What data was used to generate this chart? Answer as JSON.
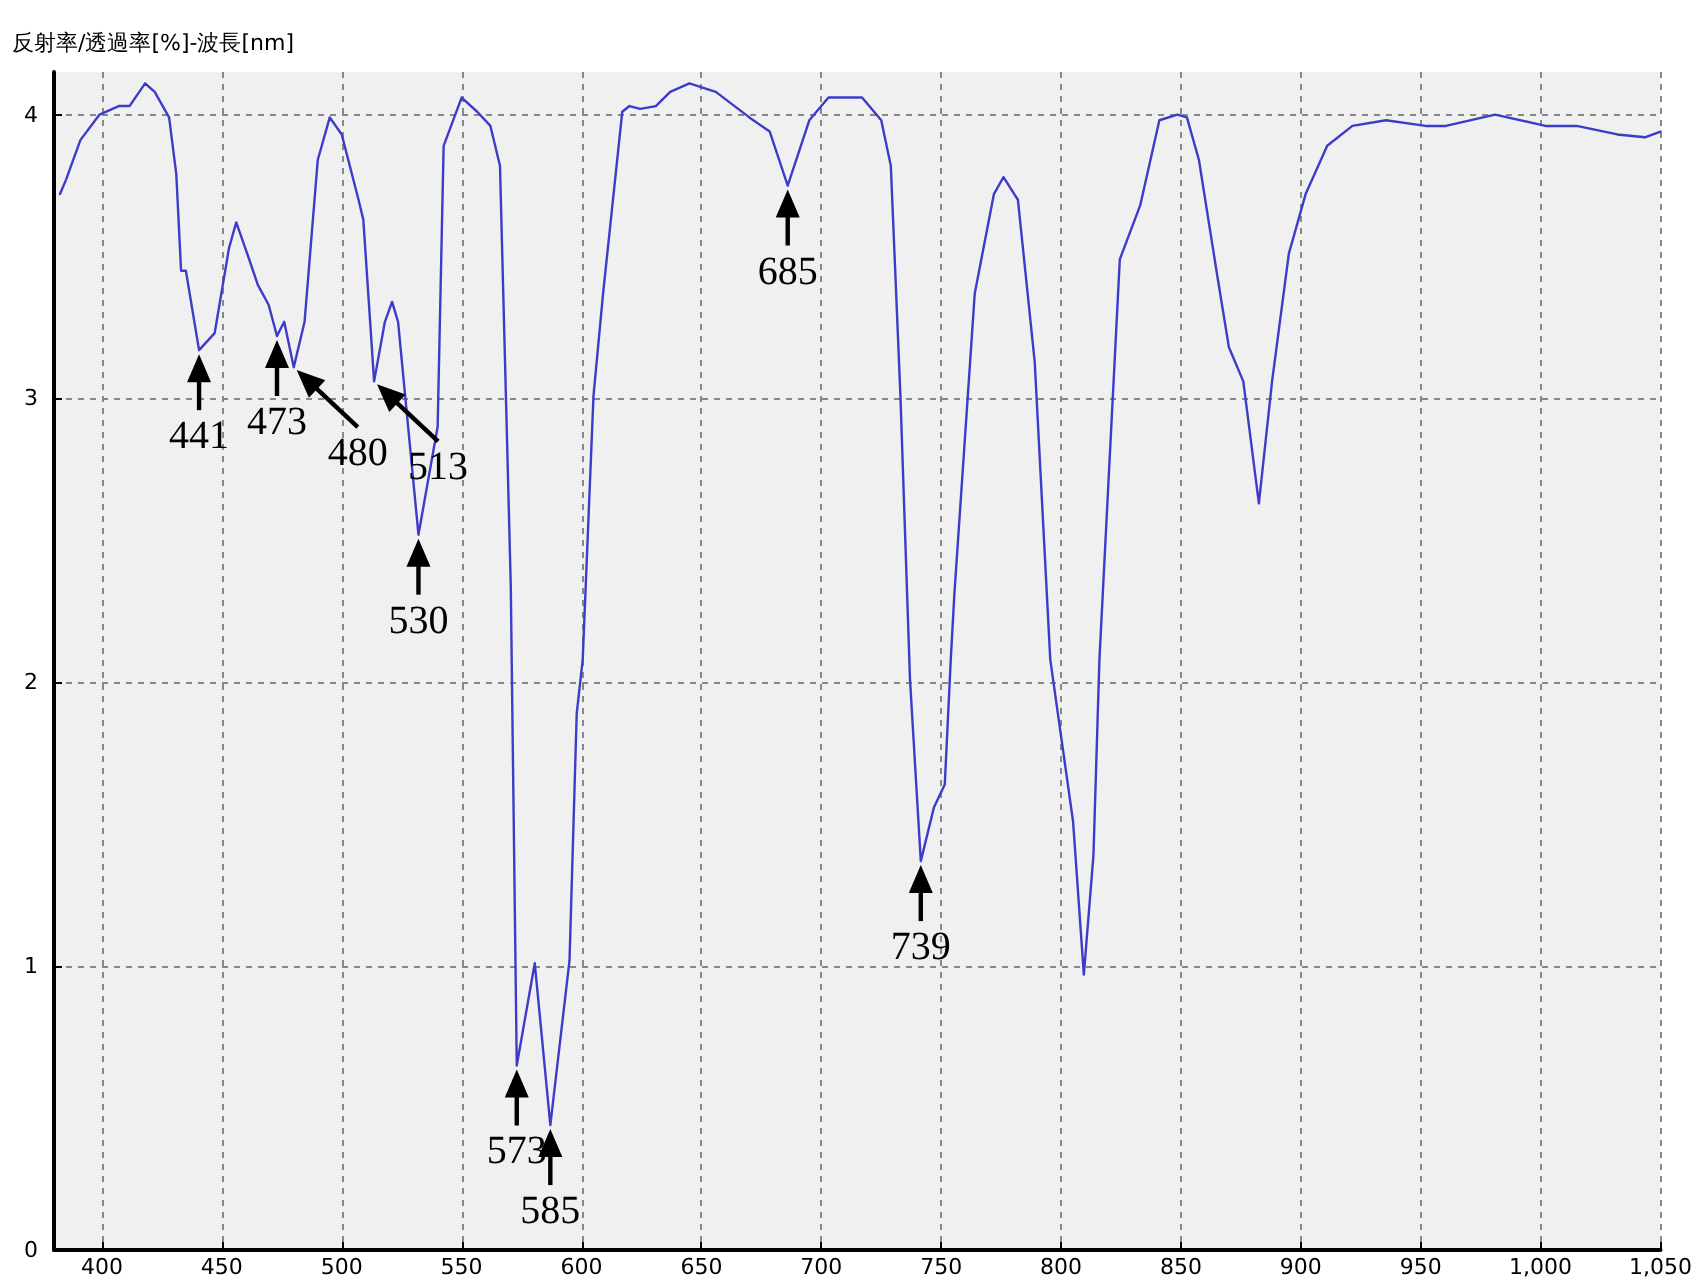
{
  "chart_data": {
    "type": "line",
    "title": "反射率/透過率[%]-波長[nm]",
    "x": [
      382.5,
      385,
      391,
      399,
      407,
      411.5,
      418,
      422,
      428,
      431,
      433,
      435,
      440.5,
      447,
      453,
      456,
      461,
      465,
      469.5,
      473,
      476,
      480,
      484.5,
      490,
      495,
      500,
      507,
      509,
      513.5,
      518,
      521,
      523.5,
      532,
      540,
      542.5,
      550,
      556.5,
      562,
      566,
      570.5,
      573,
      580.5,
      587,
      595,
      598,
      600.5,
      605,
      609,
      617,
      620,
      624.5,
      631,
      637,
      645,
      656,
      670,
      678.5,
      686,
      695,
      703,
      717,
      725,
      729,
      733,
      737,
      741.5,
      747,
      751.5,
      754,
      755.5,
      764,
      772,
      776,
      782,
      789,
      795.5,
      805,
      809.5,
      813.5,
      816,
      824.5,
      833,
      841,
      848.5,
      852.5,
      857.5,
      865,
      870,
      876,
      882.5,
      888,
      895,
      902,
      911,
      921.5,
      935.5,
      952,
      960.5,
      981,
      1002,
      1015,
      1032,
      1043.5,
      1050
    ],
    "series": [
      {
        "color": "#3c3cc8",
        "values": [
          3.72,
          3.77,
          3.91,
          4.0,
          4.03,
          4.03,
          4.11,
          4.08,
          3.99,
          3.79,
          3.45,
          3.45,
          3.17,
          3.23,
          3.53,
          3.62,
          3.5,
          3.4,
          3.33,
          3.22,
          3.27,
          3.11,
          3.27,
          3.84,
          3.99,
          3.93,
          3.7,
          3.63,
          3.06,
          3.27,
          3.34,
          3.27,
          2.52,
          2.9,
          3.89,
          4.06,
          4.01,
          3.96,
          3.82,
          2.34,
          0.65,
          1.01,
          0.44,
          1.02,
          1.89,
          2.08,
          3.01,
          3.37,
          4.01,
          4.03,
          4.02,
          4.03,
          4.08,
          4.11,
          4.08,
          3.99,
          3.94,
          3.75,
          3.98,
          4.06,
          4.06,
          3.98,
          3.82,
          3.01,
          2.01,
          1.37,
          1.56,
          1.64,
          2.08,
          2.31,
          3.37,
          3.72,
          3.78,
          3.7,
          3.13,
          2.08,
          1.51,
          0.97,
          1.39,
          2.08,
          3.49,
          3.68,
          3.98,
          4.0,
          3.99,
          3.84,
          3.44,
          3.18,
          3.06,
          2.63,
          3.06,
          3.51,
          3.72,
          3.89,
          3.96,
          3.98,
          3.96,
          3.96,
          4.0,
          3.96,
          3.96,
          3.93,
          3.92,
          3.94
        ]
      }
    ],
    "xlim": [
      380,
      1050
    ],
    "xticks": [
      400,
      450,
      500,
      550,
      600,
      650,
      700,
      750,
      800,
      850,
      900,
      950,
      {
        "value": 1000,
        "label": "1,000"
      },
      {
        "value": 1050,
        "label": "1,050"
      }
    ],
    "ylim": [
      0,
      4.15
    ],
    "yticks": [
      0,
      1,
      2,
      3,
      4
    ],
    "grid": true,
    "line_style": "solid",
    "annotations": [
      {
        "text": "441",
        "x": 440.5,
        "y": 3.17
      },
      {
        "text": "473",
        "x": 473,
        "y": 3.22
      },
      {
        "text": "480",
        "x": 480,
        "y": 3.11
      },
      {
        "text": "513",
        "x": 513.5,
        "y": 3.06
      },
      {
        "text": "530",
        "x": 532,
        "y": 2.52
      },
      {
        "text": "573",
        "x": 573,
        "y": 0.65
      },
      {
        "text": "585",
        "x": 587,
        "y": 0.44
      },
      {
        "text": "685",
        "x": 686,
        "y": 3.75
      },
      {
        "text": "739",
        "x": 741.5,
        "y": 1.37
      }
    ]
  }
}
